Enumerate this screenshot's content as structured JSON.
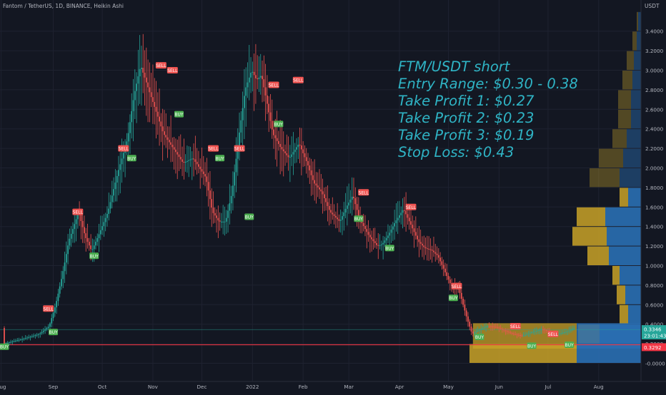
{
  "header": {
    "title": "Fantom / TetherUS, 1D, BINANCE, Heikin Ashi",
    "currency": "USDT"
  },
  "annotation": {
    "lines": [
      "FTM/USDT short",
      "Entry Range: $0.30 - 0.38",
      "Take Profit 1: $0.27",
      "Take Profit 2: $0.23",
      "Take Profit 3: $0.19",
      "Stop Loss: $0.43"
    ]
  },
  "colors": {
    "background": "#131722",
    "up": "#26a69a",
    "down": "#ef5350",
    "annotation": "#2fb4c5",
    "vp_up": "#2a6fb3",
    "vp_down": "#c9a227",
    "sell_tag": "#ef5350",
    "buy_tag": "#4caf50",
    "red_line": "#f23645"
  },
  "chart_data": {
    "type": "candlestick",
    "title": "Fantom / TetherUS, 1D, BINANCE, Heikin Ashi",
    "y_axis": {
      "label": "USDT",
      "range": [
        -0.1,
        3.55
      ],
      "ticks": [
        "-0.0000",
        "0.2000",
        "0.4000",
        "0.6000",
        "0.8000",
        "1.0000",
        "1.2000",
        "1.4000",
        "1.6000",
        "1.8000",
        "2.0000",
        "2.2000",
        "2.4000",
        "2.6000",
        "2.8000",
        "3.0000",
        "3.2000",
        "3.4000"
      ]
    },
    "x_axis": {
      "labels": [
        "Aug",
        "Sep",
        "Oct",
        "Nov",
        "Dec",
        "2022",
        "Feb",
        "Mar",
        "Apr",
        "May",
        "Jun",
        "Jul",
        "Aug"
      ],
      "label_day": [
        -2,
        30,
        60,
        91,
        121,
        152,
        183,
        211,
        242,
        272,
        303,
        333,
        364
      ]
    },
    "price_path": [
      [
        0,
        0.2
      ],
      [
        12,
        0.25
      ],
      [
        22,
        0.3
      ],
      [
        28,
        0.38
      ],
      [
        32,
        0.6
      ],
      [
        36,
        0.9
      ],
      [
        40,
        1.25
      ],
      [
        46,
        1.55
      ],
      [
        50,
        1.3
      ],
      [
        54,
        1.15
      ],
      [
        58,
        1.3
      ],
      [
        64,
        1.55
      ],
      [
        70,
        1.95
      ],
      [
        76,
        2.3
      ],
      [
        80,
        2.75
      ],
      [
        84,
        3.05
      ],
      [
        87,
        2.9
      ],
      [
        90,
        2.75
      ],
      [
        94,
        2.55
      ],
      [
        98,
        2.35
      ],
      [
        104,
        2.2
      ],
      [
        110,
        2.05
      ],
      [
        116,
        2.1
      ],
      [
        120,
        2.0
      ],
      [
        124,
        1.9
      ],
      [
        128,
        1.55
      ],
      [
        132,
        1.45
      ],
      [
        136,
        1.45
      ],
      [
        140,
        1.75
      ],
      [
        144,
        2.3
      ],
      [
        148,
        2.8
      ],
      [
        152,
        3.0
      ],
      [
        155,
        2.9
      ],
      [
        158,
        2.95
      ],
      [
        161,
        2.7
      ],
      [
        165,
        2.35
      ],
      [
        170,
        2.2
      ],
      [
        175,
        2.1
      ],
      [
        181,
        2.25
      ],
      [
        186,
        2.05
      ],
      [
        190,
        1.85
      ],
      [
        195,
        1.75
      ],
      [
        200,
        1.55
      ],
      [
        206,
        1.45
      ],
      [
        210,
        1.6
      ],
      [
        214,
        1.72
      ],
      [
        218,
        1.48
      ],
      [
        224,
        1.3
      ],
      [
        229,
        1.2
      ],
      [
        232,
        1.22
      ],
      [
        236,
        1.32
      ],
      [
        240,
        1.45
      ],
      [
        245,
        1.58
      ],
      [
        250,
        1.4
      ],
      [
        254,
        1.25
      ],
      [
        258,
        1.18
      ],
      [
        262,
        1.16
      ],
      [
        266,
        1.1
      ],
      [
        270,
        0.95
      ],
      [
        274,
        0.8
      ],
      [
        279,
        0.75
      ],
      [
        284,
        0.45
      ],
      [
        287,
        0.3
      ],
      [
        291,
        0.34
      ],
      [
        296,
        0.38
      ],
      [
        302,
        0.37
      ],
      [
        306,
        0.34
      ],
      [
        312,
        0.3
      ],
      [
        318,
        0.28
      ],
      [
        322,
        0.31
      ],
      [
        326,
        0.33
      ],
      [
        330,
        0.35
      ],
      [
        334,
        0.32
      ],
      [
        338,
        0.3
      ],
      [
        342,
        0.31
      ],
      [
        346,
        0.33
      ],
      [
        349,
        0.36
      ]
    ],
    "signals": [
      {
        "label": "BUY",
        "day": 0,
        "price": 0.17
      },
      {
        "label": "SELL",
        "day": 27,
        "price": 0.56
      },
      {
        "label": "BUY",
        "day": 30,
        "price": 0.32
      },
      {
        "label": "SELL",
        "day": 45,
        "price": 1.55
      },
      {
        "label": "BUY",
        "day": 55,
        "price": 1.1
      },
      {
        "label": "SELL",
        "day": 73,
        "price": 2.2
      },
      {
        "label": "BUY",
        "day": 78,
        "price": 2.1
      },
      {
        "label": "SELL",
        "day": 96,
        "price": 3.05
      },
      {
        "label": "SELL",
        "day": 103,
        "price": 3.0
      },
      {
        "label": "BUY",
        "day": 107,
        "price": 2.55
      },
      {
        "label": "SELL",
        "day": 128,
        "price": 2.2
      },
      {
        "label": "BUY",
        "day": 132,
        "price": 2.1
      },
      {
        "label": "SELL",
        "day": 144,
        "price": 2.2
      },
      {
        "label": "BUY",
        "day": 150,
        "price": 1.5
      },
      {
        "label": "SELL",
        "day": 165,
        "price": 2.85
      },
      {
        "label": "BUY",
        "day": 168,
        "price": 2.45
      },
      {
        "label": "SELL",
        "day": 180,
        "price": 2.9
      },
      {
        "label": "SELL",
        "day": 220,
        "price": 1.75
      },
      {
        "label": "BUY",
        "day": 217,
        "price": 1.48
      },
      {
        "label": "BUY",
        "day": 236,
        "price": 1.18
      },
      {
        "label": "SELL",
        "day": 249,
        "price": 1.6
      },
      {
        "label": "SELL",
        "day": 277,
        "price": 0.79
      },
      {
        "label": "BUY",
        "day": 275,
        "price": 0.67
      },
      {
        "label": "BUY",
        "day": 291,
        "price": 0.27
      },
      {
        "label": "SELL",
        "day": 313,
        "price": 0.38
      },
      {
        "label": "BUY",
        "day": 323,
        "price": 0.18
      },
      {
        "label": "SELL",
        "day": 336,
        "price": 0.3
      },
      {
        "label": "BUY",
        "day": 346,
        "price": 0.19
      }
    ],
    "volume_profile": [
      {
        "price": 3.5,
        "up": 4,
        "down": 2
      },
      {
        "price": 3.3,
        "up": 6,
        "down": 6
      },
      {
        "price": 3.1,
        "up": 10,
        "down": 10
      },
      {
        "price": 2.9,
        "up": 12,
        "down": 14
      },
      {
        "price": 2.7,
        "up": 14,
        "down": 18
      },
      {
        "price": 2.5,
        "up": 14,
        "down": 18
      },
      {
        "price": 2.3,
        "up": 20,
        "down": 20
      },
      {
        "price": 2.1,
        "up": 25,
        "down": 34
      },
      {
        "price": 1.9,
        "up": 30,
        "down": 42
      },
      {
        "price": 1.7,
        "up": 18,
        "down": 12
      },
      {
        "price": 1.5,
        "up": 50,
        "down": 40
      },
      {
        "price": 1.3,
        "up": 48,
        "down": 48
      },
      {
        "price": 1.1,
        "up": 45,
        "down": 30
      },
      {
        "price": 0.9,
        "up": 30,
        "down": 10
      },
      {
        "price": 0.7,
        "up": 22,
        "down": 12
      },
      {
        "price": 0.5,
        "up": 18,
        "down": 12
      },
      {
        "price": 0.3,
        "up": 58,
        "down": 30
      },
      {
        "price": 0.1,
        "up": 90,
        "down": 150
      }
    ],
    "horizontal_lines": [
      {
        "name": "support",
        "price": 0.345,
        "color": "#26a69a"
      },
      {
        "name": "stop",
        "price": 0.19,
        "color": "#f23645"
      }
    ],
    "price_labels": [
      {
        "value": "0.3346",
        "price": 0.35,
        "color": "#26a69a"
      },
      {
        "value": "23:01:43",
        "price": 0.285,
        "color": "#26a69a"
      },
      {
        "value": "0.3292",
        "price": 0.165,
        "color": "#f23645"
      }
    ]
  }
}
